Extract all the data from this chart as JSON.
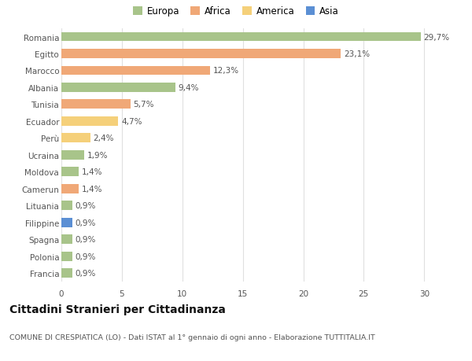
{
  "categories": [
    "Francia",
    "Polonia",
    "Spagna",
    "Filippine",
    "Lituania",
    "Camerun",
    "Moldova",
    "Ucraina",
    "Perù",
    "Ecuador",
    "Tunisia",
    "Albania",
    "Marocco",
    "Egitto",
    "Romania"
  ],
  "values": [
    0.9,
    0.9,
    0.9,
    0.9,
    0.9,
    1.4,
    1.4,
    1.9,
    2.4,
    4.7,
    5.7,
    9.4,
    12.3,
    23.1,
    29.7
  ],
  "colors": [
    "#a8c48a",
    "#a8c48a",
    "#a8c48a",
    "#5b8fd4",
    "#a8c48a",
    "#f0a877",
    "#a8c48a",
    "#a8c48a",
    "#f5d07a",
    "#f5d07a",
    "#f0a877",
    "#a8c48a",
    "#f0a877",
    "#f0a877",
    "#a8c48a"
  ],
  "labels": [
    "0,9%",
    "0,9%",
    "0,9%",
    "0,9%",
    "0,9%",
    "1,4%",
    "1,4%",
    "1,9%",
    "2,4%",
    "4,7%",
    "5,7%",
    "9,4%",
    "12,3%",
    "23,1%",
    "29,7%"
  ],
  "legend": [
    {
      "label": "Europa",
      "color": "#a8c48a"
    },
    {
      "label": "Africa",
      "color": "#f0a877"
    },
    {
      "label": "America",
      "color": "#f5d07a"
    },
    {
      "label": "Asia",
      "color": "#5b8fd4"
    }
  ],
  "title": "Cittadini Stranieri per Cittadinanza",
  "subtitle": "COMUNE DI CRESPIATICA (LO) - Dati ISTAT al 1° gennaio di ogni anno - Elaborazione TUTTITALIA.IT",
  "xlim": [
    0,
    32
  ],
  "xticks": [
    0,
    5,
    10,
    15,
    20,
    25,
    30
  ],
  "background_color": "#ffffff",
  "grid_color": "#e0e0e0",
  "bar_height": 0.55,
  "label_fontsize": 7.5,
  "tick_fontsize": 7.5,
  "title_fontsize": 10,
  "subtitle_fontsize": 6.8,
  "legend_fontsize": 8.5
}
